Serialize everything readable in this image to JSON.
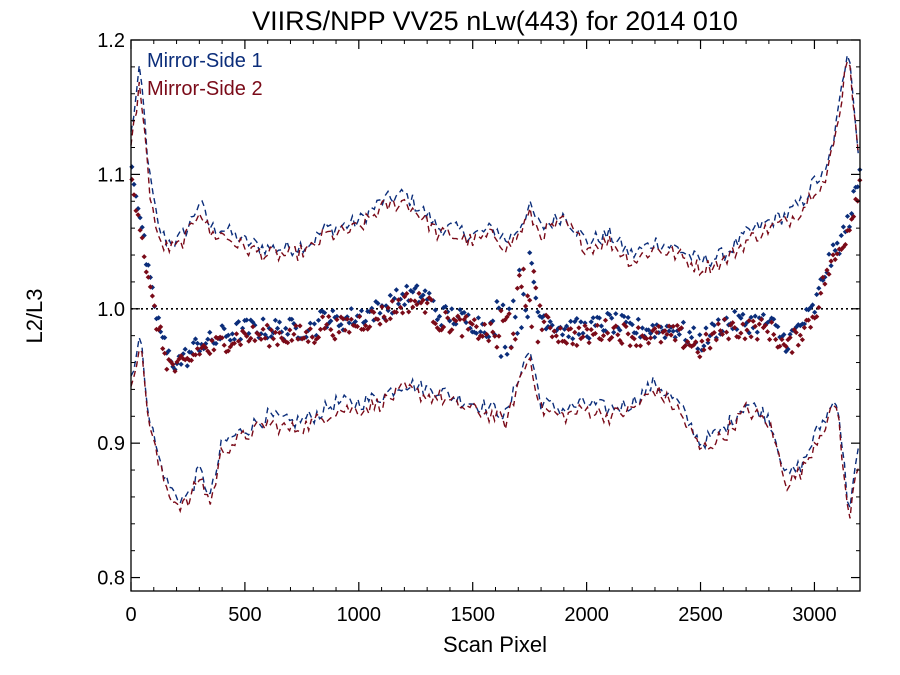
{
  "chart_data": {
    "type": "scatter",
    "title": "VIIRS/NPP VV25 nLw(443) for 2014 010",
    "xlabel": "Scan Pixel",
    "ylabel": "L2/L3",
    "xlim": [
      0,
      3200
    ],
    "ylim": [
      0.79,
      1.2
    ],
    "xticks": [
      0,
      500,
      1000,
      1500,
      2000,
      2500,
      3000
    ],
    "xtick_labels": [
      "0",
      "500",
      "1000",
      "1500",
      "2000",
      "2500",
      "3000"
    ],
    "yticks": [
      0.8,
      0.9,
      1.0,
      1.1,
      1.2
    ],
    "ytick_labels": [
      "0.8",
      "0.9",
      "1.0",
      "1.1",
      "1.2"
    ],
    "reference_line": 1.0,
    "legend_position": "top-left",
    "grid": false,
    "series": [
      {
        "name": "Mirror-Side 1",
        "color": "#0b2d7a",
        "mean_x": [
          0,
          40,
          80,
          120,
          160,
          200,
          250,
          300,
          350,
          400,
          500,
          600,
          700,
          800,
          850,
          900,
          1000,
          1100,
          1200,
          1300,
          1350,
          1400,
          1500,
          1600,
          1650,
          1700,
          1750,
          1800,
          1900,
          2000,
          2100,
          2200,
          2300,
          2400,
          2500,
          2600,
          2700,
          2800,
          2880,
          2950,
          3000,
          3050,
          3100,
          3150,
          3200
        ],
        "mean_y": [
          1.11,
          1.07,
          1.02,
          0.99,
          0.965,
          0.96,
          0.965,
          0.975,
          0.975,
          0.98,
          0.985,
          0.985,
          0.985,
          0.985,
          0.995,
          0.99,
          0.995,
          1.0,
          1.01,
          1.01,
          0.995,
          0.995,
          0.99,
          0.985,
          0.99,
          1.005,
          1.02,
          0.995,
          0.985,
          0.985,
          0.99,
          0.985,
          0.985,
          0.985,
          0.975,
          0.99,
          0.99,
          0.99,
          0.975,
          0.99,
          1.0,
          1.03,
          1.045,
          1.065,
          1.1
        ],
        "upper_y": [
          1.13,
          1.18,
          1.1,
          1.06,
          1.05,
          1.05,
          1.06,
          1.08,
          1.06,
          1.06,
          1.05,
          1.045,
          1.045,
          1.05,
          1.06,
          1.06,
          1.065,
          1.08,
          1.085,
          1.07,
          1.06,
          1.06,
          1.055,
          1.06,
          1.05,
          1.06,
          1.075,
          1.06,
          1.07,
          1.05,
          1.055,
          1.04,
          1.05,
          1.045,
          1.035,
          1.04,
          1.055,
          1.065,
          1.07,
          1.08,
          1.095,
          1.1,
          1.14,
          1.2,
          1.1
        ],
        "lower_y": [
          0.95,
          0.98,
          0.92,
          0.89,
          0.87,
          0.86,
          0.86,
          0.88,
          0.86,
          0.9,
          0.91,
          0.92,
          0.915,
          0.92,
          0.925,
          0.93,
          0.93,
          0.935,
          0.945,
          0.94,
          0.94,
          0.935,
          0.93,
          0.925,
          0.92,
          0.95,
          0.97,
          0.93,
          0.925,
          0.93,
          0.925,
          0.93,
          0.945,
          0.93,
          0.9,
          0.91,
          0.93,
          0.92,
          0.875,
          0.885,
          0.905,
          0.92,
          0.935,
          0.85,
          0.9
        ]
      },
      {
        "name": "Mirror-Side 2",
        "color": "#7a0a18",
        "mean_x": [
          0,
          40,
          80,
          120,
          160,
          200,
          250,
          300,
          350,
          400,
          500,
          600,
          700,
          800,
          850,
          900,
          1000,
          1100,
          1200,
          1300,
          1350,
          1400,
          1500,
          1600,
          1650,
          1700,
          1750,
          1800,
          1900,
          2000,
          2100,
          2200,
          2300,
          2400,
          2500,
          2600,
          2700,
          2800,
          2880,
          2950,
          3000,
          3050,
          3100,
          3150,
          3200
        ],
        "mean_y": [
          1.1,
          1.065,
          1.015,
          0.985,
          0.96,
          0.955,
          0.96,
          0.97,
          0.97,
          0.975,
          0.98,
          0.98,
          0.98,
          0.98,
          0.99,
          0.985,
          0.99,
          0.995,
          1.005,
          1.005,
          0.99,
          0.99,
          0.985,
          0.98,
          0.985,
          1.0,
          1.015,
          0.99,
          0.98,
          0.98,
          0.985,
          0.98,
          0.98,
          0.98,
          0.97,
          0.985,
          0.985,
          0.985,
          0.97,
          0.985,
          0.995,
          1.025,
          1.04,
          1.06,
          1.095
        ],
        "upper_y": [
          1.12,
          1.17,
          1.09,
          1.05,
          1.045,
          1.045,
          1.055,
          1.075,
          1.055,
          1.055,
          1.045,
          1.04,
          1.04,
          1.045,
          1.055,
          1.055,
          1.06,
          1.075,
          1.08,
          1.065,
          1.055,
          1.055,
          1.05,
          1.055,
          1.045,
          1.055,
          1.07,
          1.055,
          1.065,
          1.045,
          1.05,
          1.035,
          1.045,
          1.04,
          1.03,
          1.035,
          1.05,
          1.06,
          1.065,
          1.075,
          1.09,
          1.095,
          1.135,
          1.195,
          1.095
        ],
        "lower_y": [
          0.945,
          0.975,
          0.915,
          0.885,
          0.865,
          0.855,
          0.855,
          0.875,
          0.855,
          0.895,
          0.905,
          0.915,
          0.91,
          0.915,
          0.92,
          0.925,
          0.925,
          0.93,
          0.94,
          0.935,
          0.935,
          0.93,
          0.925,
          0.92,
          0.915,
          0.945,
          0.965,
          0.925,
          0.92,
          0.925,
          0.92,
          0.925,
          0.94,
          0.925,
          0.895,
          0.905,
          0.925,
          0.915,
          0.87,
          0.88,
          0.9,
          0.915,
          0.93,
          0.84,
          0.895
        ]
      }
    ]
  }
}
